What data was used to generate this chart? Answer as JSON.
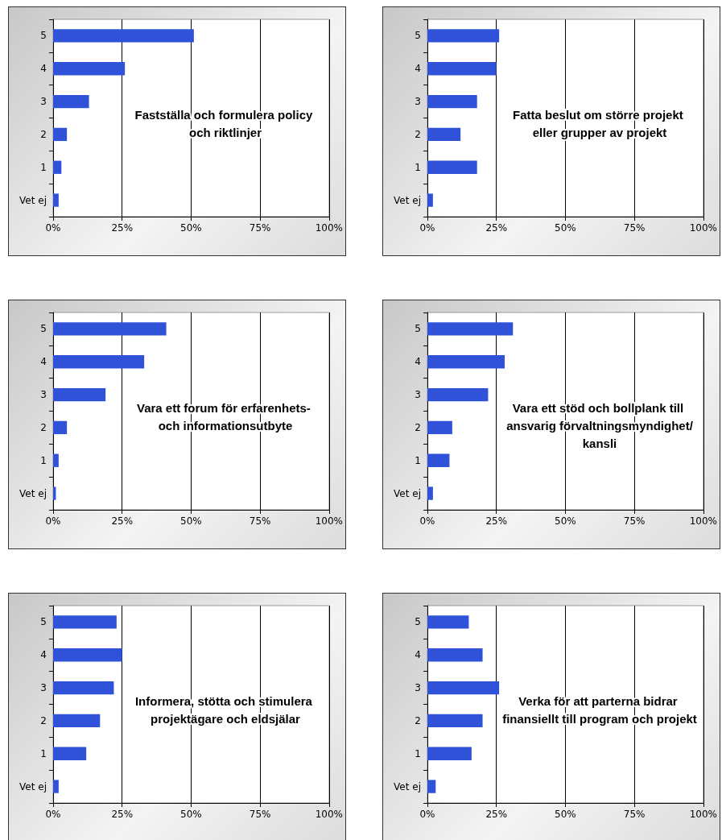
{
  "chart_data": [
    {
      "type": "bar",
      "orientation": "horizontal",
      "title": "Fastställa och formulera policy och riktlinjer",
      "categories": [
        "5",
        "4",
        "3",
        "2",
        "1",
        "Vet ej"
      ],
      "values": [
        51,
        26,
        13,
        5,
        3,
        2
      ],
      "color": "#2f52d8",
      "xlim": [
        0,
        100
      ],
      "xticks": [
        {
          "value": 0,
          "label": "0%"
        },
        {
          "value": 25,
          "label": "25%"
        },
        {
          "value": 50,
          "label": "50%"
        },
        {
          "value": 75,
          "label": "75%"
        },
        {
          "value": 100,
          "label": "100%"
        }
      ],
      "grid": "x"
    },
    {
      "type": "bar",
      "orientation": "horizontal",
      "title": "Fatta beslut om större projekt eller grupper av projekt",
      "categories": [
        "5",
        "4",
        "3",
        "2",
        "1",
        "Vet ej"
      ],
      "values": [
        26,
        25,
        18,
        12,
        18,
        2
      ],
      "color": "#2f52d8",
      "xlim": [
        0,
        100
      ],
      "xticks": [
        {
          "value": 0,
          "label": "0%"
        },
        {
          "value": 25,
          "label": "25%"
        },
        {
          "value": 50,
          "label": "50%"
        },
        {
          "value": 75,
          "label": "75%"
        },
        {
          "value": 100,
          "label": "100%"
        }
      ],
      "grid": "x"
    },
    {
      "type": "bar",
      "orientation": "horizontal",
      "title": "Vara ett forum för erfarenhets- och informationsutbyte",
      "categories": [
        "5",
        "4",
        "3",
        "2",
        "1",
        "Vet ej"
      ],
      "values": [
        41,
        33,
        19,
        5,
        2,
        1
      ],
      "color": "#2f52d8",
      "xlim": [
        0,
        100
      ],
      "xticks": [
        {
          "value": 0,
          "label": "0%"
        },
        {
          "value": 25,
          "label": "25%"
        },
        {
          "value": 50,
          "label": "50%"
        },
        {
          "value": 75,
          "label": "75%"
        },
        {
          "value": 100,
          "label": "100%"
        }
      ],
      "grid": "x"
    },
    {
      "type": "bar",
      "orientation": "horizontal",
      "title": "Vara ett stöd och bollplank till ansvarig förvaltningsmyndighet/kansli",
      "categories": [
        "5",
        "4",
        "3",
        "2",
        "1",
        "Vet ej"
      ],
      "values": [
        31,
        28,
        22,
        9,
        8,
        2
      ],
      "color": "#2f52d8",
      "xlim": [
        0,
        100
      ],
      "xticks": [
        {
          "value": 0,
          "label": "0%"
        },
        {
          "value": 25,
          "label": "25%"
        },
        {
          "value": 50,
          "label": "50%"
        },
        {
          "value": 75,
          "label": "75%"
        },
        {
          "value": 100,
          "label": "100%"
        }
      ],
      "grid": "x"
    },
    {
      "type": "bar",
      "orientation": "horizontal",
      "title": "Informera, stötta och stimulera projektägare och eldsjälar",
      "categories": [
        "5",
        "4",
        "3",
        "2",
        "1",
        "Vet ej"
      ],
      "values": [
        23,
        25,
        22,
        17,
        12,
        2
      ],
      "color": "#2f52d8",
      "xlim": [
        0,
        100
      ],
      "xticks": [
        {
          "value": 0,
          "label": "0%"
        },
        {
          "value": 25,
          "label": "25%"
        },
        {
          "value": 50,
          "label": "50%"
        },
        {
          "value": 75,
          "label": "75%"
        },
        {
          "value": 100,
          "label": "100%"
        }
      ],
      "grid": "x"
    },
    {
      "type": "bar",
      "orientation": "horizontal",
      "title": "Verka för att parterna bidrar finansiellt till program och projekt",
      "categories": [
        "5",
        "4",
        "3",
        "2",
        "1",
        "Vet ej"
      ],
      "values": [
        15,
        20,
        26,
        20,
        16,
        3
      ],
      "color": "#2f52d8",
      "xlim": [
        0,
        100
      ],
      "xticks": [
        {
          "value": 0,
          "label": "0%"
        },
        {
          "value": 25,
          "label": "25%"
        },
        {
          "value": 50,
          "label": "50%"
        },
        {
          "value": 75,
          "label": "75%"
        },
        {
          "value": 100,
          "label": "100%"
        }
      ],
      "grid": "x"
    }
  ]
}
